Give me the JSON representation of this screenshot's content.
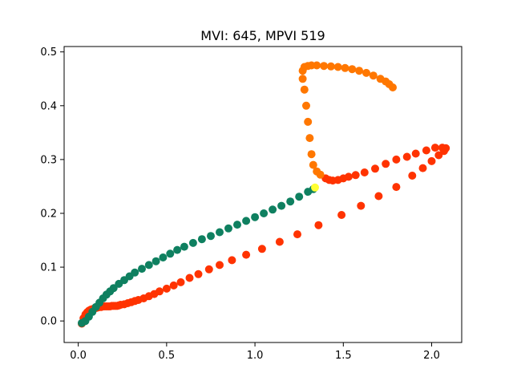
{
  "chart_data": {
    "type": "scatter",
    "title": "MVI: 645, MPVI 519",
    "xlabel": "",
    "ylabel": "",
    "xlim": [
      -0.08,
      2.17
    ],
    "ylim": [
      -0.04,
      0.51
    ],
    "xticks": [
      0.0,
      0.5,
      1.0,
      1.5,
      2.0
    ],
    "xtick_labels": [
      "0.0",
      "0.5",
      "1.0",
      "1.5",
      "2.0"
    ],
    "yticks": [
      0.0,
      0.1,
      0.2,
      0.3,
      0.4,
      0.5
    ],
    "ytick_labels": [
      "0.0",
      "0.1",
      "0.2",
      "0.3",
      "0.4",
      "0.5"
    ],
    "grid": false,
    "legend": "none",
    "colors": {
      "red_series": "#ff3300",
      "orange_series": "#ff7700",
      "green_series": "#0f8060",
      "highlight_point": "#ffff33"
    },
    "series": [
      {
        "color": "#ff3300",
        "points": [
          [
            0.02,
            -0.005
          ],
          [
            0.03,
            0.005
          ],
          [
            0.04,
            0.012
          ],
          [
            0.05,
            0.016
          ],
          [
            0.06,
            0.019
          ],
          [
            0.07,
            0.021
          ],
          [
            0.08,
            0.022
          ],
          [
            0.09,
            0.023
          ],
          [
            0.1,
            0.024
          ],
          [
            0.11,
            0.025
          ],
          [
            0.12,
            0.026
          ],
          [
            0.13,
            0.026
          ],
          [
            0.14,
            0.027
          ],
          [
            0.15,
            0.027
          ],
          [
            0.16,
            0.027
          ],
          [
            0.17,
            0.027
          ],
          [
            0.18,
            0.027
          ],
          [
            0.19,
            0.028
          ],
          [
            0.2,
            0.028
          ],
          [
            0.21,
            0.028
          ],
          [
            0.22,
            0.028
          ],
          [
            0.23,
            0.029
          ],
          [
            0.24,
            0.03
          ],
          [
            0.26,
            0.031
          ],
          [
            0.28,
            0.033
          ],
          [
            0.3,
            0.035
          ],
          [
            0.32,
            0.037
          ],
          [
            0.34,
            0.039
          ],
          [
            0.37,
            0.042
          ],
          [
            0.4,
            0.046
          ],
          [
            0.43,
            0.05
          ],
          [
            0.46,
            0.055
          ],
          [
            0.5,
            0.06
          ],
          [
            0.54,
            0.066
          ],
          [
            0.58,
            0.072
          ],
          [
            0.63,
            0.08
          ],
          [
            0.68,
            0.087
          ],
          [
            0.74,
            0.096
          ],
          [
            0.8,
            0.104
          ],
          [
            0.87,
            0.113
          ],
          [
            0.95,
            0.123
          ],
          [
            1.04,
            0.134
          ],
          [
            1.14,
            0.147
          ],
          [
            1.24,
            0.161
          ],
          [
            1.36,
            0.178
          ],
          [
            1.49,
            0.197
          ],
          [
            1.6,
            0.214
          ],
          [
            1.7,
            0.232
          ],
          [
            1.8,
            0.249
          ],
          [
            1.89,
            0.27
          ],
          [
            1.95,
            0.284
          ],
          [
            2.0,
            0.297
          ],
          [
            2.04,
            0.308
          ],
          [
            2.07,
            0.316
          ],
          [
            2.08,
            0.321
          ],
          [
            2.06,
            0.322
          ],
          [
            2.02,
            0.322
          ],
          [
            1.97,
            0.317
          ],
          [
            1.91,
            0.311
          ],
          [
            1.86,
            0.305
          ],
          [
            1.8,
            0.3
          ],
          [
            1.74,
            0.292
          ],
          [
            1.68,
            0.283
          ],
          [
            1.62,
            0.276
          ],
          [
            1.57,
            0.271
          ],
          [
            1.53,
            0.268
          ],
          [
            1.5,
            0.265
          ],
          [
            1.47,
            0.262
          ],
          [
            1.44,
            0.261
          ],
          [
            1.42,
            0.262
          ],
          [
            1.4,
            0.265
          ]
        ]
      },
      {
        "color": "#ff7700",
        "points": [
          [
            1.37,
            0.272
          ],
          [
            1.35,
            0.278
          ],
          [
            1.33,
            0.29
          ],
          [
            1.32,
            0.31
          ],
          [
            1.31,
            0.34
          ],
          [
            1.3,
            0.37
          ],
          [
            1.29,
            0.4
          ],
          [
            1.28,
            0.43
          ],
          [
            1.27,
            0.45
          ],
          [
            1.27,
            0.465
          ],
          [
            1.28,
            0.472
          ],
          [
            1.3,
            0.474
          ],
          [
            1.32,
            0.475
          ],
          [
            1.35,
            0.475
          ],
          [
            1.39,
            0.474
          ],
          [
            1.43,
            0.473
          ],
          [
            1.47,
            0.472
          ],
          [
            1.51,
            0.47
          ],
          [
            1.55,
            0.468
          ],
          [
            1.59,
            0.465
          ],
          [
            1.63,
            0.461
          ],
          [
            1.67,
            0.456
          ],
          [
            1.71,
            0.45
          ],
          [
            1.74,
            0.445
          ],
          [
            1.76,
            0.44
          ],
          [
            1.78,
            0.434
          ]
        ]
      },
      {
        "color": "#0f8060",
        "points": [
          [
            0.02,
            -0.004
          ],
          [
            0.04,
            0.0
          ],
          [
            0.06,
            0.008
          ],
          [
            0.08,
            0.017
          ],
          [
            0.1,
            0.026
          ],
          [
            0.12,
            0.034
          ],
          [
            0.14,
            0.042
          ],
          [
            0.16,
            0.049
          ],
          [
            0.18,
            0.055
          ],
          [
            0.2,
            0.061
          ],
          [
            0.23,
            0.069
          ],
          [
            0.26,
            0.076
          ],
          [
            0.29,
            0.083
          ],
          [
            0.32,
            0.09
          ],
          [
            0.36,
            0.097
          ],
          [
            0.4,
            0.104
          ],
          [
            0.44,
            0.111
          ],
          [
            0.48,
            0.118
          ],
          [
            0.52,
            0.125
          ],
          [
            0.56,
            0.132
          ],
          [
            0.6,
            0.138
          ],
          [
            0.65,
            0.145
          ],
          [
            0.7,
            0.152
          ],
          [
            0.75,
            0.158
          ],
          [
            0.8,
            0.165
          ],
          [
            0.85,
            0.172
          ],
          [
            0.9,
            0.179
          ],
          [
            0.95,
            0.186
          ],
          [
            1.0,
            0.193
          ],
          [
            1.05,
            0.2
          ],
          [
            1.1,
            0.207
          ],
          [
            1.15,
            0.214
          ],
          [
            1.2,
            0.222
          ],
          [
            1.25,
            0.231
          ],
          [
            1.3,
            0.24
          ],
          [
            1.33,
            0.245
          ]
        ]
      },
      {
        "color": "#ffff33",
        "points": [
          [
            1.34,
            0.248
          ]
        ]
      }
    ]
  }
}
